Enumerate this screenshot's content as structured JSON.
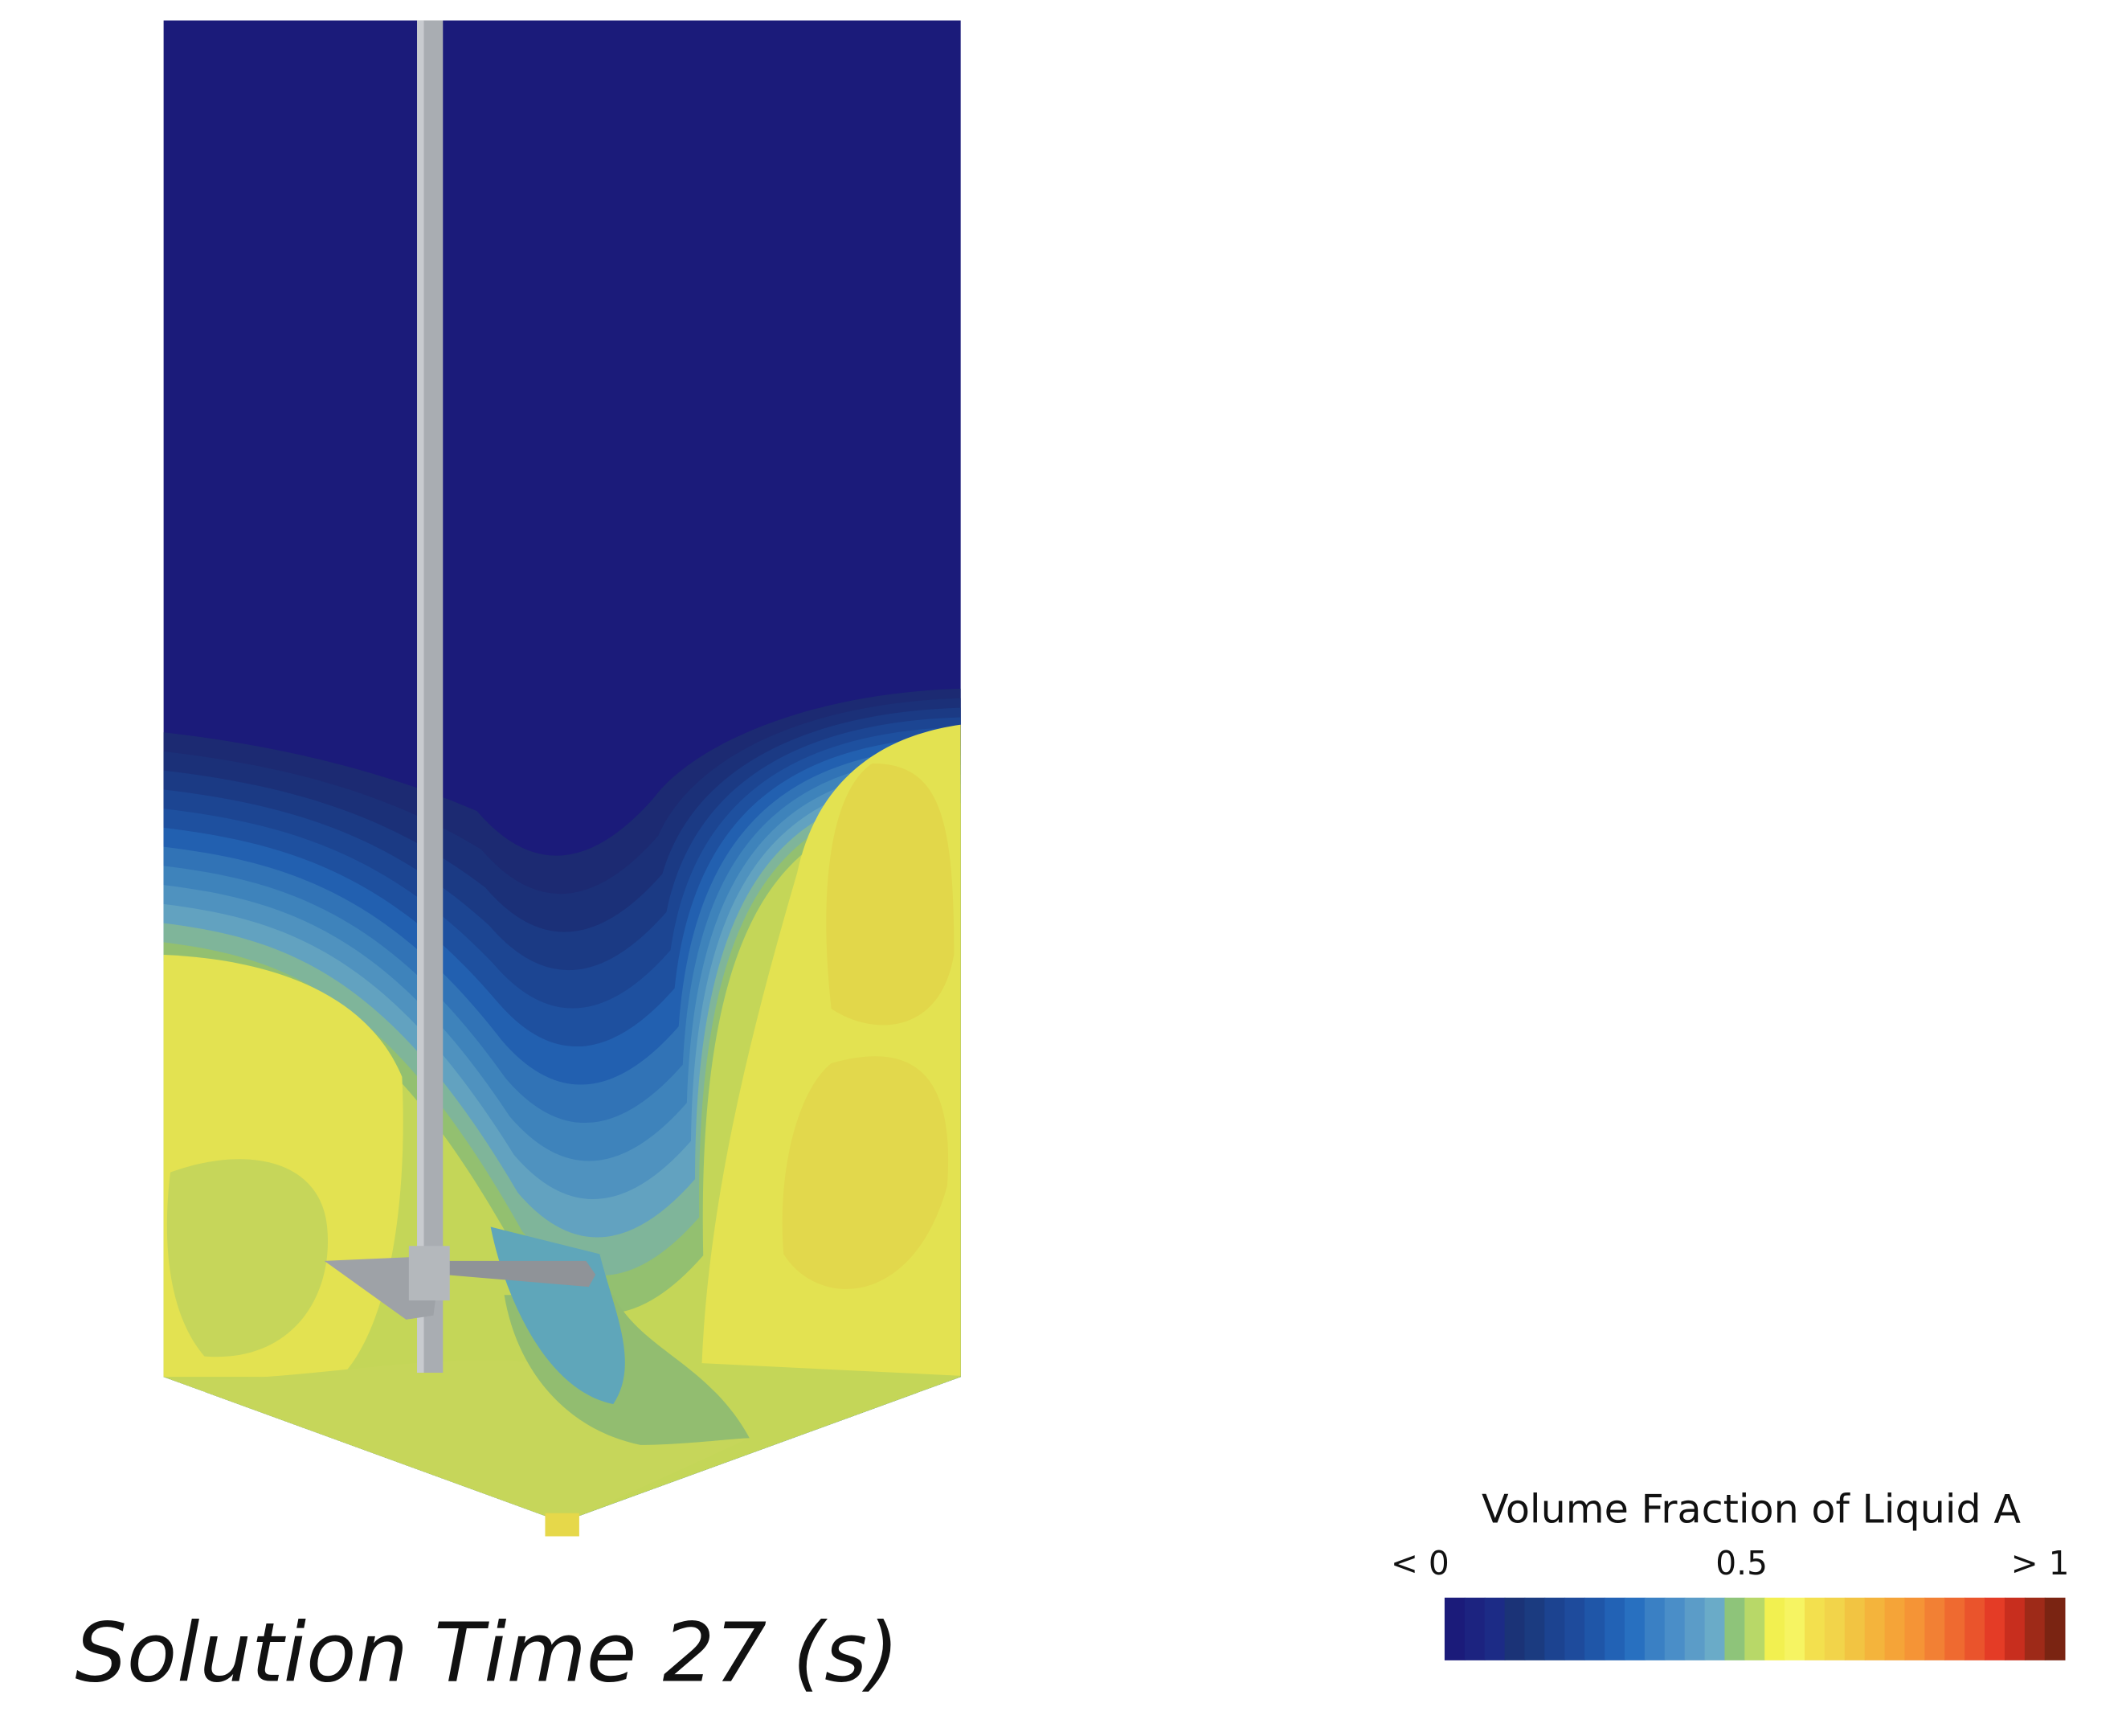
{
  "caption": "Solution Time 27 (s)",
  "legend": {
    "title": "Volume Fraction of Liquid A",
    "labels": [
      "< 0",
      "0.5",
      "> 1"
    ]
  }
}
